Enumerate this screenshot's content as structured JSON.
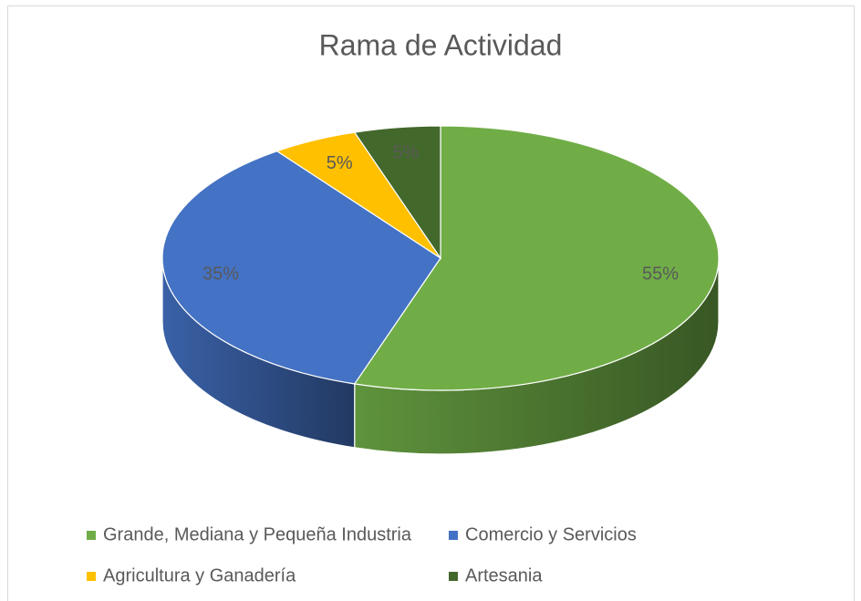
{
  "chart_data": {
    "type": "pie",
    "title": "Rama de Actividad",
    "categories": [
      "Grande, Mediana y Pequeña Industria",
      "Comercio y Servicios",
      "Agricultura y Ganadería",
      "Artesania"
    ],
    "values": [
      55,
      35,
      5,
      5
    ],
    "value_labels": [
      "55%",
      "35%",
      "5%",
      "5%"
    ],
    "colors": [
      "#70ad47",
      "#4472c4",
      "#ffc000",
      "#43682b"
    ],
    "legend": "bottom"
  }
}
